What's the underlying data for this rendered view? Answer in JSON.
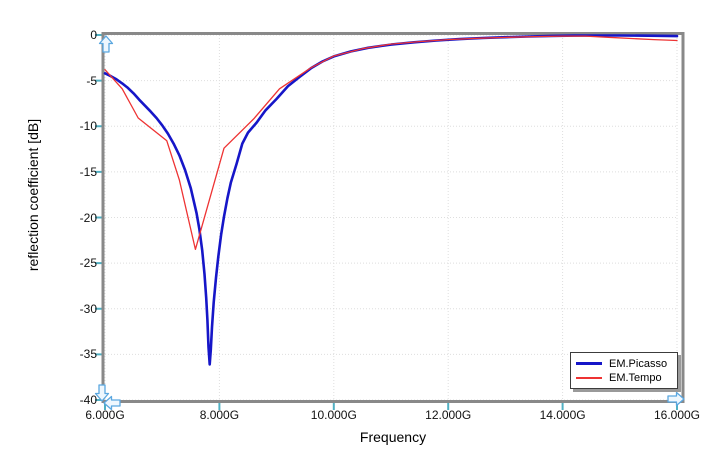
{
  "window": {
    "background": "#ffffff"
  },
  "chart_data": {
    "type": "line",
    "title": "",
    "xlabel": "Frequency",
    "ylabel": "reflection coefficient [dB]",
    "xlim": [
      6,
      16
    ],
    "ylim": [
      -40,
      0
    ],
    "grid": true,
    "grid_style": "dotted",
    "legend_position": "bottom-right",
    "xticks": [
      {
        "value": 6,
        "label": "6.000G"
      },
      {
        "value": 8,
        "label": "8.000G"
      },
      {
        "value": 10,
        "label": "10.000G"
      },
      {
        "value": 12,
        "label": "12.000G"
      },
      {
        "value": 14,
        "label": "14.000G"
      },
      {
        "value": 16,
        "label": "16.000G"
      }
    ],
    "yticks": [
      {
        "value": 0,
        "label": "0"
      },
      {
        "value": -5,
        "label": "-5"
      },
      {
        "value": -10,
        "label": "-10"
      },
      {
        "value": -15,
        "label": "-15"
      },
      {
        "value": -20,
        "label": "-20"
      },
      {
        "value": -25,
        "label": "-25"
      },
      {
        "value": -30,
        "label": "-30"
      },
      {
        "value": -35,
        "label": "-35"
      },
      {
        "value": -40,
        "label": "-40"
      }
    ],
    "series": [
      {
        "name": "EM.Picasso",
        "color": "#1616c8",
        "line_width": 2.6,
        "points": [
          [
            6.0,
            -4.2
          ],
          [
            6.1,
            -4.5
          ],
          [
            6.2,
            -4.85
          ],
          [
            6.3,
            -5.3
          ],
          [
            6.4,
            -5.8
          ],
          [
            6.5,
            -6.4
          ],
          [
            6.6,
            -7.1
          ],
          [
            6.7,
            -7.75
          ],
          [
            6.8,
            -8.4
          ],
          [
            6.9,
            -9.1
          ],
          [
            7.0,
            -9.9
          ],
          [
            7.1,
            -10.8
          ],
          [
            7.2,
            -11.9
          ],
          [
            7.3,
            -13.2
          ],
          [
            7.4,
            -14.8
          ],
          [
            7.5,
            -16.8
          ],
          [
            7.6,
            -19.5
          ],
          [
            7.65,
            -21.3
          ],
          [
            7.7,
            -23.6
          ],
          [
            7.74,
            -26.2
          ],
          [
            7.77,
            -28.8
          ],
          [
            7.79,
            -31.2
          ],
          [
            7.81,
            -34.2
          ],
          [
            7.83,
            -36.1
          ],
          [
            7.85,
            -34.5
          ],
          [
            7.87,
            -32.0
          ],
          [
            7.9,
            -29.3
          ],
          [
            7.94,
            -26.6
          ],
          [
            7.98,
            -24.3
          ],
          [
            8.03,
            -21.9
          ],
          [
            8.08,
            -19.9
          ],
          [
            8.14,
            -17.9
          ],
          [
            8.2,
            -16.2
          ],
          [
            8.3,
            -14.1
          ],
          [
            8.4,
            -11.9
          ],
          [
            8.5,
            -10.7
          ],
          [
            8.65,
            -9.6
          ],
          [
            8.8,
            -8.3
          ],
          [
            9.0,
            -7.0
          ],
          [
            9.2,
            -5.6
          ],
          [
            9.4,
            -4.6
          ],
          [
            9.6,
            -3.65
          ],
          [
            9.8,
            -2.9
          ],
          [
            10.0,
            -2.35
          ],
          [
            10.3,
            -1.8
          ],
          [
            10.6,
            -1.4
          ],
          [
            11.0,
            -1.05
          ],
          [
            11.4,
            -0.8
          ],
          [
            11.8,
            -0.6
          ],
          [
            12.2,
            -0.45
          ],
          [
            12.6,
            -0.33
          ],
          [
            13.0,
            -0.24
          ],
          [
            13.4,
            -0.16
          ],
          [
            13.8,
            -0.1
          ],
          [
            14.2,
            -0.07
          ],
          [
            14.6,
            -0.06
          ],
          [
            15.0,
            -0.06
          ],
          [
            15.5,
            -0.08
          ],
          [
            16.0,
            -0.12
          ]
        ]
      },
      {
        "name": "EM.Tempo",
        "color": "#ee3333",
        "line_width": 1.3,
        "points": [
          [
            6.0,
            -3.8
          ],
          [
            6.3,
            -5.9
          ],
          [
            6.58,
            -9.1
          ],
          [
            7.08,
            -11.6
          ],
          [
            7.3,
            -15.9
          ],
          [
            7.58,
            -23.5
          ],
          [
            8.08,
            -12.4
          ],
          [
            8.6,
            -9.2
          ],
          [
            9.05,
            -5.9
          ],
          [
            9.6,
            -3.6
          ],
          [
            10.0,
            -2.3
          ],
          [
            10.5,
            -1.5
          ],
          [
            11.0,
            -1.0
          ],
          [
            11.5,
            -0.72
          ],
          [
            12.0,
            -0.5
          ],
          [
            12.5,
            -0.36
          ],
          [
            13.0,
            -0.26
          ],
          [
            13.5,
            -0.17
          ],
          [
            14.0,
            -0.12
          ],
          [
            14.4,
            -0.12
          ],
          [
            14.8,
            -0.25
          ],
          [
            15.2,
            -0.38
          ],
          [
            15.6,
            -0.5
          ],
          [
            16.0,
            -0.6
          ]
        ]
      }
    ],
    "style": {
      "frame_color": "#898989",
      "tick_color": "#50b0c3",
      "grid_color": "#dedede",
      "text_color": "#000000"
    },
    "axis_handles": {
      "color": "#5aa7e0",
      "fill": "#eef7fe",
      "items": [
        {
          "id": "y-axis-max",
          "direction": "up"
        },
        {
          "id": "y-axis-min",
          "direction": "down"
        },
        {
          "id": "x-axis-min",
          "direction": "left"
        },
        {
          "id": "x-axis-max",
          "direction": "right"
        }
      ]
    }
  }
}
